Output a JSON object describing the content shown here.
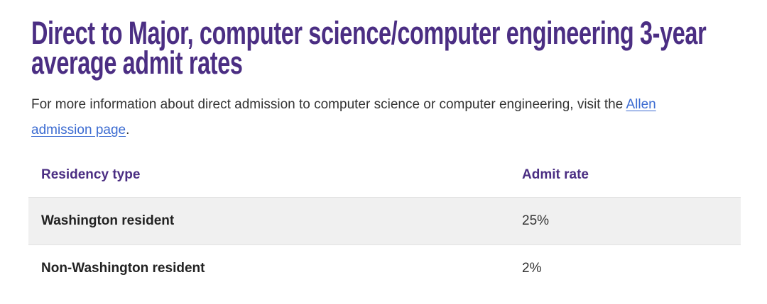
{
  "page": {
    "heading": "Direct to Major, computer science/computer engineering 3-year average admit rates",
    "paragraph": {
      "text_before_link": "For more information about direct admission to computer science or computer engineering, visit the ",
      "link_text": "Allen admission page",
      "text_after_link": "."
    },
    "table": {
      "columns": [
        "Residency type",
        "Admit rate"
      ],
      "rows": [
        [
          "Washington resident",
          "25%"
        ],
        [
          "Non-Washington resident",
          "2%"
        ]
      ]
    },
    "colors": {
      "heading_purple": "#4b2e83",
      "link_blue": "#3b6bd1",
      "row_stripe_gray": "#f0f0f0",
      "row_border_gray": "#e2e2e2",
      "body_text": "#333333"
    }
  }
}
